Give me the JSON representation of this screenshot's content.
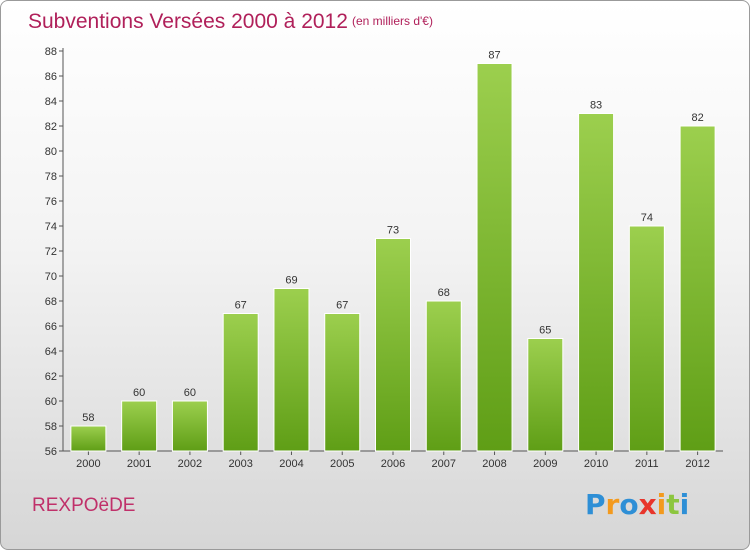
{
  "title": "Subventions Versées 2000 à 2012",
  "subtitle": "(en milliers d'€)",
  "commune": "REXPOëDE",
  "logo": {
    "letters": [
      "P",
      "r",
      "o",
      "x",
      "i",
      "t",
      "i"
    ],
    "colors": [
      "#2e8fd6",
      "#f39a1e",
      "#2e8fd6",
      "#e8352b",
      "#f39a1e",
      "#8cc63f",
      "#2e8fd6"
    ]
  },
  "chart_data": {
    "type": "bar",
    "categories": [
      "2000",
      "2001",
      "2002",
      "2003",
      "2004",
      "2005",
      "2006",
      "2007",
      "2008",
      "2009",
      "2010",
      "2011",
      "2012"
    ],
    "values": [
      58,
      60,
      60,
      67,
      69,
      67,
      73,
      68,
      87,
      65,
      83,
      74,
      82
    ],
    "ylim": [
      56,
      88
    ],
    "yticks": [
      56,
      58,
      60,
      62,
      64,
      66,
      68,
      70,
      72,
      74,
      76,
      78,
      80,
      82,
      84,
      86,
      88
    ],
    "grid": false,
    "bar_color_top": "#9ccf4e",
    "bar_color_bottom": "#5f9e16"
  }
}
